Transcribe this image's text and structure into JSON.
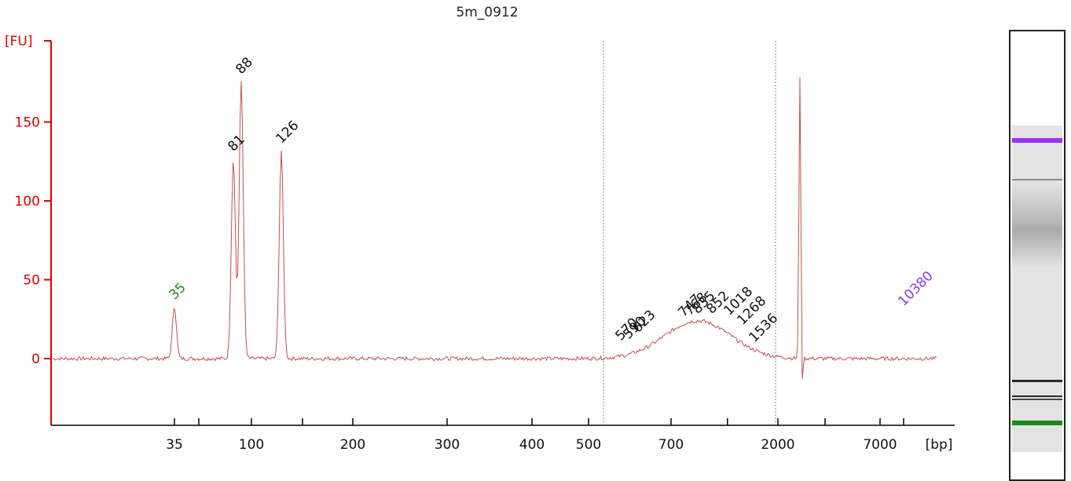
{
  "chart_data": {
    "type": "line",
    "title": "5m_0912",
    "ylabel": "[FU]",
    "xlabel": "[bp]",
    "x_scale": "size-standard ladder",
    "x_ticks": [
      "35",
      "100",
      "200",
      "300",
      "400",
      "500",
      "700",
      "2000",
      "7000"
    ],
    "y_ticks": [
      0,
      50,
      100,
      150
    ],
    "ylim": [
      -42,
      205
    ],
    "grid": false,
    "colors": {
      "axis": "#e00000",
      "trace": "#c0504d",
      "marker_lower": "#1a8a1a",
      "marker_upper": "#9933ff",
      "peak_label": "#111111"
    },
    "range_lines_bp": [
      540,
      1950
    ],
    "peaks": [
      {
        "label": "35",
        "size_bp": 35,
        "fu": 33,
        "color": "marker_lower"
      },
      {
        "label": "81",
        "size_bp": 81,
        "fu": 127,
        "color": "peak_label"
      },
      {
        "label": "88",
        "size_bp": 88,
        "fu": 176,
        "color": "peak_label"
      },
      {
        "label": "126",
        "size_bp": 126,
        "fu": 132,
        "color": "peak_label"
      },
      {
        "label": "570",
        "size_bp": 570,
        "fu": 7,
        "color": "peak_label"
      },
      {
        "label": "590",
        "size_bp": 590,
        "fu": 8,
        "color": "peak_label"
      },
      {
        "label": "623",
        "size_bp": 623,
        "fu": 12,
        "color": "peak_label"
      },
      {
        "label": "747",
        "size_bp": 747,
        "fu": 22,
        "color": "peak_label"
      },
      {
        "label": "768",
        "size_bp": 768,
        "fu": 23,
        "color": "peak_label"
      },
      {
        "label": "835",
        "size_bp": 835,
        "fu": 24,
        "color": "peak_label"
      },
      {
        "label": "852",
        "size_bp": 852,
        "fu": 24,
        "color": "peak_label"
      },
      {
        "label": "1018",
        "size_bp": 1018,
        "fu": 23,
        "color": "peak_label"
      },
      {
        "label": "1268",
        "size_bp": 1268,
        "fu": 17,
        "color": "peak_label"
      },
      {
        "label": "1536",
        "size_bp": 1536,
        "fu": 6,
        "color": "peak_label"
      },
      {
        "label": "10380",
        "size_bp": 10380,
        "fu": 29,
        "color": "marker_upper"
      }
    ],
    "unlabeled_spike": {
      "size_bp": 2500,
      "fu": 179,
      "min_fu": -22
    }
  },
  "gel": {
    "bands": [
      {
        "name": "upper-marker-band",
        "color": "#9933ff"
      },
      {
        "name": "band-grey-1",
        "color": "#8a8a8a"
      },
      {
        "name": "band-dark-1",
        "color": "#2b2b2b"
      },
      {
        "name": "band-dark-2",
        "color": "#2b2b2b"
      },
      {
        "name": "band-dark-3",
        "color": "#444444"
      },
      {
        "name": "lower-marker-band",
        "color": "#1a8a1a"
      }
    ]
  }
}
